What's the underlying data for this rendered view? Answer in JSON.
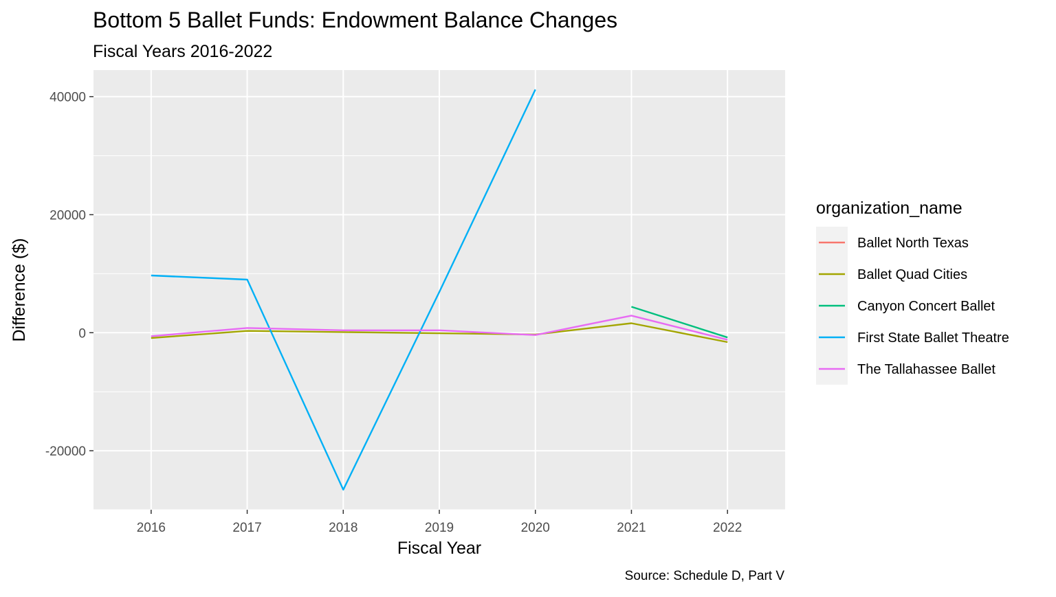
{
  "chart_data": {
    "type": "line",
    "title": "Bottom 5 Ballet Funds: Endowment Balance Changes",
    "subtitle": "Fiscal Years 2016-2022",
    "xlabel": "Fiscal Year",
    "ylabel": "Difference ($)",
    "caption": "Source: Schedule D, Part V",
    "x": [
      2016,
      2017,
      2018,
      2019,
      2020,
      2021,
      2022
    ],
    "xlim": [
      2015.4,
      2022.6
    ],
    "ylim": [
      -30000,
      44500
    ],
    "y_ticks": [
      -20000,
      0,
      20000,
      40000
    ],
    "y_minor_ticks": [
      -30000,
      -10000,
      10000,
      30000
    ],
    "grid": true,
    "legend": {
      "title": "organization_name",
      "position": "right"
    },
    "series": [
      {
        "name": "Ballet North Texas",
        "color": "#F8766D",
        "values": [
          null,
          null,
          null,
          null,
          null,
          null,
          null
        ]
      },
      {
        "name": "Ballet Quad Cities",
        "color": "#A3A500",
        "values": [
          -900,
          300,
          100,
          -100,
          -300,
          1600,
          -1600
        ]
      },
      {
        "name": "Canyon Concert Ballet",
        "color": "#00BF7D",
        "values": [
          null,
          null,
          null,
          null,
          null,
          4400,
          -800
        ]
      },
      {
        "name": "First State Ballet Theatre",
        "color": "#00B0F6",
        "values": [
          9700,
          9000,
          -26600,
          6900,
          41200,
          null,
          null
        ]
      },
      {
        "name": "The Tallahassee Ballet",
        "color": "#E76BF3",
        "values": [
          -600,
          800,
          400,
          400,
          -400,
          2900,
          -1200
        ]
      }
    ]
  }
}
